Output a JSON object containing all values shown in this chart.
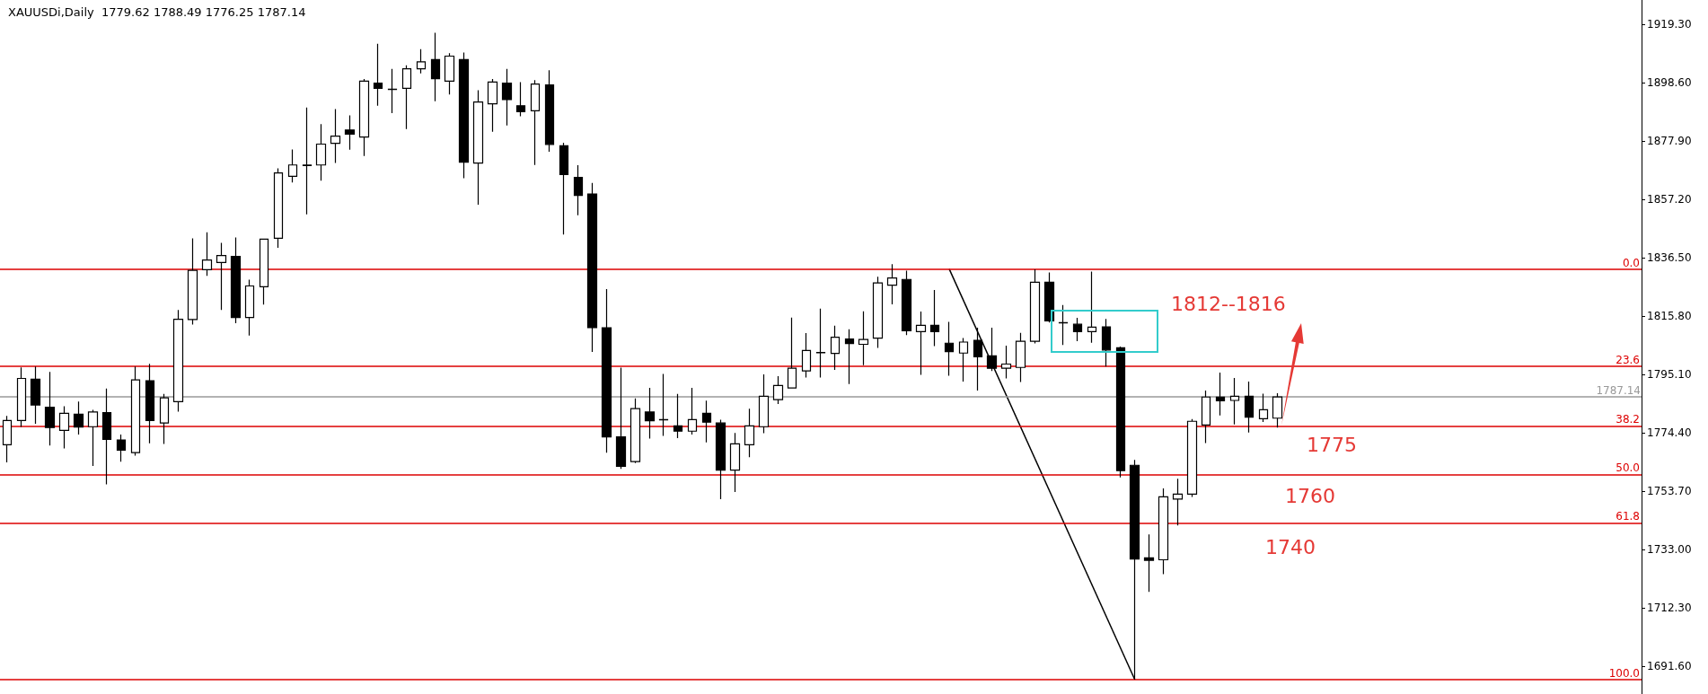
{
  "chart_data": {
    "type": "candlestick",
    "title": "XAUUSDi,Daily  1779.62 1788.49 1776.25 1787.14",
    "categories": [
      null,
      null,
      null,
      null,
      null,
      null,
      null,
      null,
      null,
      null,
      null,
      null,
      null,
      null,
      null,
      null,
      null,
      null,
      null,
      null,
      null,
      null,
      null,
      null,
      null,
      null,
      null,
      null,
      null,
      null,
      null,
      null,
      null,
      null,
      null,
      null,
      null,
      null,
      null,
      null,
      null,
      null,
      null,
      null,
      null,
      null,
      null,
      null,
      null,
      null,
      null,
      null,
      null,
      null,
      null,
      null,
      null,
      null,
      null,
      null,
      null,
      null,
      null,
      null,
      null,
      null,
      null,
      null,
      null,
      null,
      null,
      null,
      null,
      null,
      null,
      null,
      null,
      null,
      null,
      null,
      null,
      null,
      null,
      null,
      null,
      null,
      null,
      null,
      null,
      null,
      null,
      null,
      null,
      null,
      null,
      null,
      null,
      null,
      null,
      null,
      null,
      null,
      null,
      null,
      null,
      null,
      null,
      null,
      null,
      null,
      null,
      null,
      null,
      null,
      null
    ],
    "series": [
      {
        "type": "candlestick",
        "color": "#000000",
        "ohlc": [
          [
            1770.2,
            1780.4,
            1763.9,
            1778.8
          ],
          [
            1778.8,
            1797.6,
            1776.5,
            1793.7
          ],
          [
            1793.4,
            1797.9,
            1777.6,
            1784.3
          ],
          [
            1783.5,
            1796.0,
            1769.9,
            1776.3
          ],
          [
            1775.3,
            1783.8,
            1768.9,
            1781.3
          ],
          [
            1781.0,
            1785.5,
            1773.8,
            1776.5
          ],
          [
            1776.6,
            1782.6,
            1762.7,
            1781.8
          ],
          [
            1781.6,
            1790.1,
            1756.1,
            1772.1
          ],
          [
            1771.9,
            1773.8,
            1764.2,
            1768.3
          ],
          [
            1767.4,
            1797.9,
            1766.3,
            1793.2
          ],
          [
            1792.9,
            1798.9,
            1770.7,
            1778.8
          ],
          [
            1777.9,
            1788.2,
            1770.5,
            1786.8
          ],
          [
            1785.5,
            1818.0,
            1781.9,
            1814.7
          ],
          [
            1814.6,
            1843.4,
            1812.8,
            1832.0
          ],
          [
            1832.3,
            1845.5,
            1830.1,
            1835.7
          ],
          [
            1834.8,
            1841.8,
            1818.0,
            1837.3
          ],
          [
            1837.0,
            1843.7,
            1813.3,
            1815.3
          ],
          [
            1815.3,
            1828.7,
            1808.9,
            1826.5
          ],
          [
            1826.2,
            1843.1,
            1819.9,
            1843.1
          ],
          [
            1843.4,
            1868.2,
            1840.0,
            1866.6
          ],
          [
            1865.4,
            1874.9,
            1863.2,
            1869.4
          ],
          [
            1869.2,
            1889.8,
            1851.9,
            1869.4
          ],
          [
            1869.4,
            1883.9,
            1863.8,
            1876.8
          ],
          [
            1877.1,
            1889.2,
            1870.1,
            1879.6
          ],
          [
            1881.8,
            1887.0,
            1874.8,
            1880.3
          ],
          [
            1879.3,
            1899.9,
            1872.6,
            1899.1
          ],
          [
            1898.4,
            1912.4,
            1890.4,
            1896.6
          ],
          [
            1896.3,
            1903.5,
            1887.8,
            1896.2
          ],
          [
            1896.6,
            1904.7,
            1882.1,
            1903.5
          ],
          [
            1903.5,
            1910.5,
            1901.9,
            1906.0
          ],
          [
            1906.8,
            1916.3,
            1892.0,
            1900.0
          ],
          [
            1899.1,
            1909.0,
            1894.4,
            1908.0
          ],
          [
            1906.8,
            1909.3,
            1864.7,
            1870.4
          ],
          [
            1870.1,
            1895.9,
            1855.3,
            1891.7
          ],
          [
            1891.1,
            1899.9,
            1881.2,
            1898.8
          ],
          [
            1898.4,
            1903.5,
            1883.4,
            1892.6
          ],
          [
            1890.4,
            1898.8,
            1886.7,
            1888.3
          ],
          [
            1888.6,
            1899.5,
            1869.4,
            1898.1
          ],
          [
            1897.8,
            1903.0,
            1874.1,
            1876.7
          ],
          [
            1876.2,
            1877.3,
            1844.7,
            1866.0
          ],
          [
            1865.0,
            1869.3,
            1851.6,
            1858.6
          ],
          [
            1859.1,
            1863.0,
            1803.1,
            1811.7
          ],
          [
            1811.7,
            1825.4,
            1767.4,
            1773.0
          ],
          [
            1773.0,
            1797.5,
            1761.6,
            1762.5
          ],
          [
            1764.2,
            1786.6,
            1763.7,
            1783.0
          ],
          [
            1781.8,
            1790.4,
            1772.4,
            1778.7
          ],
          [
            1779.1,
            1795.3,
            1773.3,
            1779.0
          ],
          [
            1776.9,
            1788.2,
            1772.5,
            1775.0
          ],
          [
            1775.0,
            1790.4,
            1773.8,
            1779.1
          ],
          [
            1781.3,
            1785.8,
            1771.0,
            1778.2
          ],
          [
            1777.9,
            1779.1,
            1750.9,
            1761.2
          ],
          [
            1761.2,
            1774.4,
            1753.4,
            1770.5
          ],
          [
            1770.2,
            1783.0,
            1765.8,
            1776.9
          ],
          [
            1776.6,
            1795.1,
            1774.3,
            1787.4
          ],
          [
            1786.2,
            1794.5,
            1784.6,
            1791.2
          ],
          [
            1790.3,
            1815.3,
            1790.2,
            1797.3
          ],
          [
            1796.4,
            1809.8,
            1794.0,
            1803.6
          ],
          [
            1802.8,
            1818.5,
            1794.0,
            1802.9
          ],
          [
            1802.6,
            1812.4,
            1796.7,
            1808.3
          ],
          [
            1807.7,
            1811.1,
            1791.7,
            1806.1
          ],
          [
            1805.8,
            1817.5,
            1798.4,
            1807.5
          ],
          [
            1808.0,
            1829.8,
            1804.5,
            1827.6
          ],
          [
            1826.8,
            1834.2,
            1820.0,
            1829.3
          ],
          [
            1828.8,
            1831.9,
            1809.1,
            1810.6
          ],
          [
            1810.3,
            1817.4,
            1795.0,
            1812.5
          ],
          [
            1812.5,
            1825.1,
            1805.2,
            1810.3
          ],
          [
            1806.2,
            1813.8,
            1794.7,
            1803.2
          ],
          [
            1802.7,
            1808.0,
            1792.6,
            1806.6
          ],
          [
            1807.2,
            1811.7,
            1789.4,
            1801.4
          ],
          [
            1801.7,
            1811.7,
            1796.3,
            1797.3
          ],
          [
            1797.3,
            1805.3,
            1793.7,
            1798.8
          ],
          [
            1797.6,
            1809.9,
            1792.4,
            1806.9
          ],
          [
            1806.9,
            1832.4,
            1806.1,
            1827.8
          ],
          [
            1827.8,
            1831.3,
            1813.5,
            1814.1
          ],
          [
            1813.5,
            1819.7,
            1805.6,
            1813.4
          ],
          [
            1812.9,
            1815.2,
            1806.9,
            1810.3
          ],
          [
            1810.3,
            1831.6,
            1806.4,
            1811.9
          ],
          [
            1812.0,
            1814.8,
            1797.9,
            1803.8
          ],
          [
            1804.6,
            1805.0,
            1758.6,
            1761.0
          ],
          [
            1762.9,
            1764.8,
            1686.9,
            1729.7
          ],
          [
            1730.1,
            1738.4,
            1718.0,
            1729.2
          ],
          [
            1729.4,
            1754.7,
            1724.3,
            1751.7
          ],
          [
            1750.9,
            1758.1,
            1741.6,
            1752.7
          ],
          [
            1752.7,
            1779.3,
            1751.7,
            1778.5
          ],
          [
            1777.2,
            1789.4,
            1770.8,
            1787.1
          ],
          [
            1787.1,
            1795.8,
            1780.6,
            1785.8
          ],
          [
            1785.9,
            1793.9,
            1777.4,
            1787.4
          ],
          [
            1787.4,
            1792.6,
            1774.5,
            1780.0
          ],
          [
            1779.4,
            1788.3,
            1778.3,
            1782.6
          ],
          [
            1779.62,
            1788.49,
            1776.25,
            1787.14
          ],
          null,
          null,
          null,
          null,
          null,
          null,
          null,
          null,
          null,
          null,
          null,
          null,
          null,
          null,
          null,
          null,
          null,
          null,
          null,
          null,
          null,
          null,
          null,
          null,
          null
        ]
      },
      {
        "type": "line",
        "color": "#000000",
        "marker": "none",
        "values": [
          null,
          null,
          null,
          null,
          null,
          null,
          null,
          null,
          null,
          null,
          null,
          null,
          null,
          null,
          null,
          null,
          null,
          null,
          null,
          null,
          null,
          null,
          null,
          null,
          null,
          null,
          null,
          null,
          null,
          null,
          null,
          null,
          null,
          null,
          null,
          null,
          null,
          null,
          null,
          null,
          null,
          null,
          null,
          null,
          null,
          null,
          null,
          null,
          null,
          null,
          null,
          null,
          null,
          null,
          null,
          null,
          null,
          null,
          null,
          null,
          null,
          null,
          null,
          null,
          null,
          null,
          1832.5,
          null,
          null,
          null,
          null,
          null,
          null,
          null,
          null,
          null,
          null,
          null,
          null,
          1686.9,
          null,
          null,
          null,
          null,
          null,
          null,
          null,
          null,
          null,
          null,
          null,
          null,
          null,
          null,
          null,
          null,
          null,
          null,
          null,
          null,
          null,
          null,
          null,
          null,
          null,
          null,
          null,
          null,
          null,
          null,
          null,
          null,
          null,
          null,
          null
        ]
      }
    ],
    "ylim": [
      1681.8,
      1927.9
    ],
    "yticks": [
      {
        "value": 1691.6,
        "label": "1691.60"
      },
      {
        "value": 1712.3,
        "label": "1712.30"
      },
      {
        "value": 1733.0,
        "label": "1733.00"
      },
      {
        "value": 1753.7,
        "label": "1753.70"
      },
      {
        "value": 1774.4,
        "label": "1774.40"
      },
      {
        "value": 1795.1,
        "label": "1795.10"
      },
      {
        "value": 1815.8,
        "label": "1815.80"
      },
      {
        "value": 1836.5,
        "label": "1836.50"
      },
      {
        "value": 1857.2,
        "label": "1857.20"
      },
      {
        "value": 1877.9,
        "label": "1877.90"
      },
      {
        "value": 1898.6,
        "label": "1898.60"
      },
      {
        "value": 1919.3,
        "label": "1919.30"
      }
    ],
    "tick_labels": "y",
    "grid": false,
    "ref_lines": [
      {
        "axis": "y",
        "value": 1832.5,
        "color": "#dd0000"
      },
      {
        "axis": "y",
        "value": 1798.1,
        "color": "#dd0000"
      },
      {
        "axis": "y",
        "value": 1776.9,
        "color": "#dd0000"
      },
      {
        "axis": "y",
        "value": 1759.7,
        "color": "#dd0000"
      },
      {
        "axis": "y",
        "value": 1742.5,
        "color": "#dd0000"
      },
      {
        "axis": "y",
        "value": 1686.9,
        "color": "#dd0000"
      },
      {
        "axis": "y",
        "value": 1787.14,
        "label": "1787.14",
        "color": "#999999"
      }
    ],
    "annotations": [
      "1812--1816",
      "1775",
      "1760",
      "1740",
      {
        "text": "0.0",
        "y": 1832.5
      },
      {
        "text": "23.6",
        "y": 1798.1
      },
      {
        "text": "38.2",
        "y": 1776.9
      },
      {
        "text": "50.0",
        "y": 1759.7
      },
      {
        "text": "61.8",
        "y": 1742.5
      },
      {
        "text": "100.0",
        "y": 1686.9
      }
    ]
  }
}
